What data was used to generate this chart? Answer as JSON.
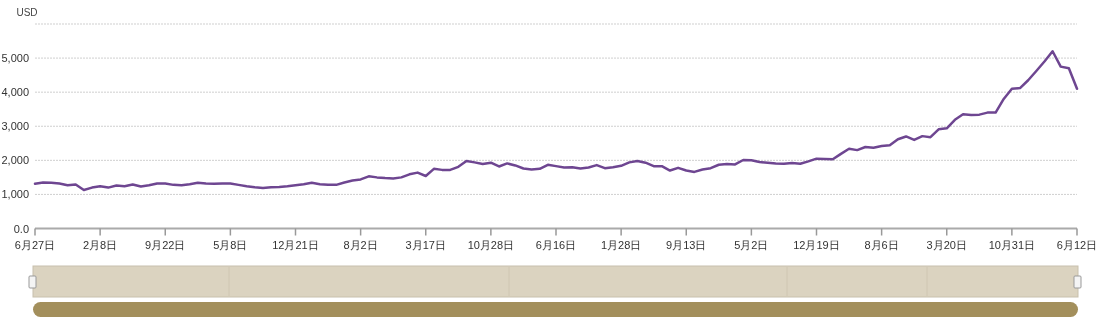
{
  "chart_data": {
    "type": "line",
    "ylabel": "USD",
    "grid": "y",
    "line_style": "solid",
    "categories": [
      "6月27日",
      null,
      null,
      null,
      null,
      null,
      null,
      null,
      "2月8日",
      null,
      null,
      null,
      null,
      null,
      null,
      null,
      "9月22日",
      null,
      null,
      null,
      null,
      null,
      null,
      null,
      "5月8日",
      null,
      null,
      null,
      null,
      null,
      null,
      null,
      "12月21日",
      null,
      null,
      null,
      null,
      null,
      null,
      null,
      "8月2日",
      null,
      null,
      null,
      null,
      null,
      null,
      null,
      "3月17日",
      null,
      null,
      null,
      null,
      null,
      null,
      null,
      "10月28日",
      null,
      null,
      null,
      null,
      null,
      null,
      null,
      "6月16日",
      null,
      null,
      null,
      null,
      null,
      null,
      null,
      "1月28日",
      null,
      null,
      null,
      null,
      null,
      null,
      null,
      "9月13日",
      null,
      null,
      null,
      null,
      null,
      null,
      null,
      "5月2日",
      null,
      null,
      null,
      null,
      null,
      null,
      null,
      "12月19日",
      null,
      null,
      null,
      null,
      null,
      null,
      null,
      "8月6日",
      null,
      null,
      null,
      null,
      null,
      null,
      null,
      "3月20日",
      null,
      null,
      null,
      null,
      null,
      null,
      null,
      "10月31日",
      null,
      null,
      null,
      null,
      null,
      null,
      null,
      "6月12日"
    ],
    "series": [
      {
        "color": "#6e4691",
        "values": [
          1310,
          1350,
          1340,
          1320,
          1270,
          1290,
          1130,
          1200,
          1240,
          1200,
          1260,
          1240,
          1290,
          1230,
          1270,
          1320,
          1320,
          1280,
          1270,
          1300,
          1340,
          1320,
          1310,
          1320,
          1320,
          1280,
          1240,
          1210,
          1190,
          1210,
          1220,
          1240,
          1270,
          1300,
          1340,
          1300,
          1280,
          1280,
          1350,
          1410,
          1440,
          1530,
          1500,
          1480,
          1470,
          1500,
          1590,
          1640,
          1540,
          1750,
          1720,
          1720,
          1810,
          1980,
          1940,
          1890,
          1930,
          1820,
          1910,
          1850,
          1760,
          1730,
          1750,
          1870,
          1830,
          1790,
          1800,
          1760,
          1790,
          1860,
          1770,
          1800,
          1840,
          1940,
          1980,
          1930,
          1830,
          1830,
          1700,
          1780,
          1700,
          1660,
          1730,
          1770,
          1870,
          1890,
          1880,
          2010,
          2000,
          1950,
          1930,
          1910,
          1900,
          1920,
          1900,
          1970,
          2050,
          2040,
          2030,
          2190,
          2340,
          2300,
          2390,
          2370,
          2420,
          2440,
          2620,
          2700,
          2600,
          2710,
          2680,
          2910,
          2940,
          3190,
          3350,
          3330,
          3340,
          3400,
          3400,
          3800,
          4100,
          4120,
          4350,
          4620,
          4900,
          5200,
          4750,
          4700,
          4100
        ]
      }
    ],
    "ylim": [
      0,
      6000
    ],
    "yticks": [
      {
        "value": 0,
        "label": "0.0"
      },
      {
        "value": 1000,
        "label": "1,000"
      },
      {
        "value": 2000,
        "label": "2,000"
      },
      {
        "value": 3000,
        "label": "3,000"
      },
      {
        "value": 4000,
        "label": "4,000"
      },
      {
        "value": 5000,
        "label": "5,000"
      },
      {
        "value": 6000,
        "label": null
      }
    ]
  }
}
